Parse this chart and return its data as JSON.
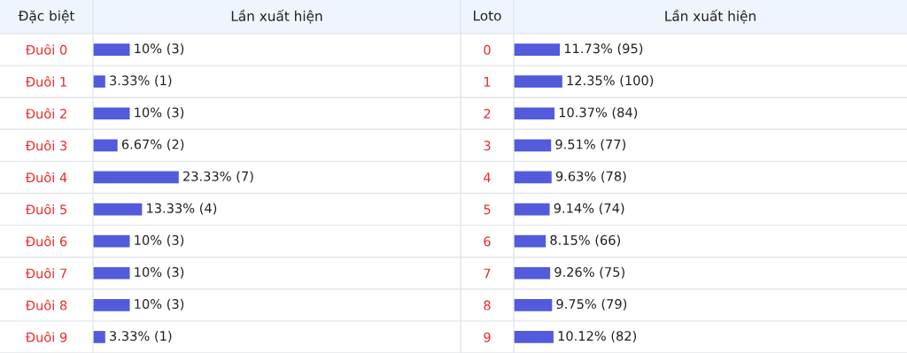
{
  "chart_data": [
    {
      "type": "bar",
      "orientation": "horizontal",
      "title": "Lần xuất hiện",
      "ylabel": "Đặc biệt",
      "tick_labels": "y",
      "xlim": [
        0,
        100
      ],
      "color": "#525bdb",
      "categories": [
        "Đuôi 0",
        "Đuôi 1",
        "Đuôi 2",
        "Đuôi 3",
        "Đuôi 4",
        "Đuôi 5",
        "Đuôi 6",
        "Đuôi 7",
        "Đuôi 8",
        "Đuôi 9"
      ],
      "values": [
        10,
        3.33,
        10,
        6.67,
        23.33,
        13.33,
        10,
        10,
        10,
        3.33
      ],
      "value_labels": [
        "10% (3)",
        "3.33% (1)",
        "10% (3)",
        "6.67% (2)",
        "23.33% (7)",
        "13.33% (4)",
        "10% (3)",
        "10% (3)",
        "10% (3)",
        "3.33% (1)"
      ]
    },
    {
      "type": "bar",
      "orientation": "horizontal",
      "title": "Lần xuất hiện",
      "ylabel": "Loto",
      "tick_labels": "y",
      "xlim": [
        0,
        100
      ],
      "color": "#525bdb",
      "categories": [
        "0",
        "1",
        "2",
        "3",
        "4",
        "5",
        "6",
        "7",
        "8",
        "9"
      ],
      "values": [
        11.73,
        12.35,
        10.37,
        9.51,
        9.63,
        9.14,
        8.15,
        9.26,
        9.75,
        10.12
      ],
      "value_labels": [
        "11.73% (95)",
        "12.35% (100)",
        "10.37% (84)",
        "9.51% (77)",
        "9.63% (78)",
        "9.14% (74)",
        "8.15% (66)",
        "9.26% (75)",
        "9.75% (79)",
        "10.12% (82)"
      ]
    }
  ]
}
